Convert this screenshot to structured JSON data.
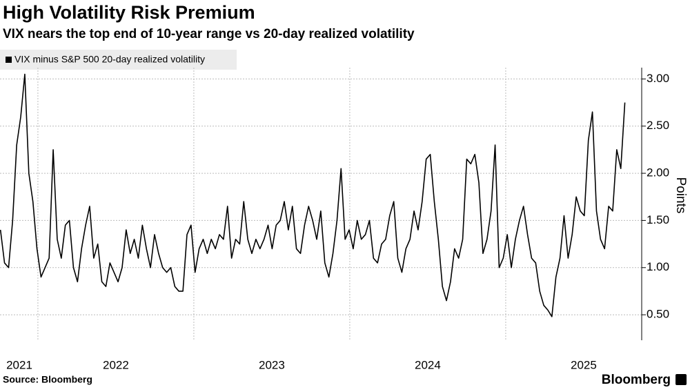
{
  "chart_data": {
    "type": "line",
    "title": "High Volatility Risk Premium",
    "subtitle": "VIX nears the top end of 10-year range vs 20-day realized volatility",
    "y_label": "Points",
    "source": "Source: Bloomberg",
    "brand": "Bloomberg",
    "legend_position": "top-left",
    "grid": true,
    "x": [
      2021.76,
      2021.786,
      2021.812,
      2021.838,
      2021.864,
      2021.89,
      2021.916,
      2021.942,
      2021.968,
      2021.994,
      2022.02,
      2022.046,
      2022.072,
      2022.098,
      2022.124,
      2022.15,
      2022.176,
      2022.202,
      2022.228,
      2022.254,
      2022.28,
      2022.306,
      2022.332,
      2022.358,
      2022.384,
      2022.41,
      2022.436,
      2022.462,
      2022.488,
      2022.514,
      2022.54,
      2022.566,
      2022.592,
      2022.618,
      2022.644,
      2022.67,
      2022.696,
      2022.722,
      2022.748,
      2022.774,
      2022.8,
      2022.826,
      2022.852,
      2022.878,
      2022.904,
      2022.93,
      2022.956,
      2022.982,
      2023.008,
      2023.034,
      2023.06,
      2023.086,
      2023.112,
      2023.138,
      2023.164,
      2023.19,
      2023.216,
      2023.242,
      2023.268,
      2023.294,
      2023.32,
      2023.346,
      2023.372,
      2023.398,
      2023.424,
      2023.45,
      2023.476,
      2023.502,
      2023.528,
      2023.554,
      2023.58,
      2023.606,
      2023.632,
      2023.658,
      2023.684,
      2023.71,
      2023.736,
      2023.762,
      2023.788,
      2023.814,
      2023.84,
      2023.866,
      2023.892,
      2023.918,
      2023.944,
      2023.97,
      2023.996,
      2024.022,
      2024.048,
      2024.074,
      2024.1,
      2024.126,
      2024.152,
      2024.178,
      2024.204,
      2024.23,
      2024.256,
      2024.282,
      2024.308,
      2024.334,
      2024.36,
      2024.386,
      2024.412,
      2024.438,
      2024.464,
      2024.49,
      2024.516,
      2024.542,
      2024.568,
      2024.594,
      2024.62,
      2024.646,
      2024.672,
      2024.698,
      2024.724,
      2024.75,
      2024.776,
      2024.802,
      2024.828,
      2024.854,
      2024.88,
      2024.906,
      2024.932,
      2024.958,
      2024.984,
      2025.01,
      2025.036,
      2025.062,
      2025.088,
      2025.114,
      2025.14,
      2025.166,
      2025.192,
      2025.218,
      2025.244,
      2025.27,
      2025.296,
      2025.322,
      2025.348,
      2025.374,
      2025.4,
      2025.426,
      2025.452,
      2025.478,
      2025.504,
      2025.53,
      2025.556,
      2025.582,
      2025.608,
      2025.634,
      2025.66,
      2025.686,
      2025.712,
      2025.738,
      2025.764
    ],
    "series": [
      {
        "name": "VIX minus S&P 500 20-day realized volatility",
        "color": "#000000",
        "values": [
          1.4,
          1.05,
          1.0,
          1.5,
          2.3,
          2.6,
          3.05,
          2.0,
          1.7,
          1.2,
          0.9,
          1.0,
          1.1,
          2.25,
          1.3,
          1.1,
          1.45,
          1.5,
          1.0,
          0.85,
          1.2,
          1.45,
          1.65,
          1.1,
          1.25,
          0.85,
          0.8,
          1.05,
          0.95,
          0.85,
          1.0,
          1.4,
          1.15,
          1.3,
          1.1,
          1.45,
          1.2,
          1.0,
          1.35,
          1.15,
          1.0,
          0.95,
          1.0,
          0.8,
          0.75,
          0.75,
          1.35,
          1.45,
          0.95,
          1.2,
          1.3,
          1.15,
          1.3,
          1.2,
          1.35,
          1.3,
          1.65,
          1.1,
          1.3,
          1.25,
          1.7,
          1.3,
          1.15,
          1.3,
          1.2,
          1.3,
          1.45,
          1.2,
          1.45,
          1.5,
          1.7,
          1.4,
          1.65,
          1.2,
          1.15,
          1.45,
          1.65,
          1.5,
          1.3,
          1.6,
          1.05,
          0.9,
          1.15,
          1.5,
          2.05,
          1.3,
          1.4,
          1.2,
          1.5,
          1.3,
          1.35,
          1.5,
          1.1,
          1.05,
          1.25,
          1.3,
          1.55,
          1.7,
          1.1,
          0.95,
          1.2,
          1.3,
          1.6,
          1.4,
          1.7,
          2.15,
          2.2,
          1.7,
          1.3,
          0.8,
          0.65,
          0.85,
          1.2,
          1.1,
          1.3,
          2.15,
          2.1,
          2.2,
          1.9,
          1.15,
          1.3,
          1.6,
          2.3,
          1.0,
          1.1,
          1.35,
          1.0,
          1.3,
          1.5,
          1.65,
          1.35,
          1.1,
          1.05,
          0.75,
          0.6,
          0.55,
          0.48,
          0.9,
          1.1,
          1.55,
          1.1,
          1.35,
          1.75,
          1.6,
          1.55,
          2.35,
          2.65,
          1.6,
          1.3,
          1.2,
          1.65,
          1.6,
          2.25,
          2.05,
          2.75
        ]
      }
    ],
    "xlim": [
      2021.757,
      2025.872
    ],
    "xticks": [
      {
        "value": 2021.5,
        "label": "2021"
      },
      {
        "value": 2022.5,
        "label": "2022"
      },
      {
        "value": 2023.5,
        "label": "2023"
      },
      {
        "value": 2024.5,
        "label": "2024"
      },
      {
        "value": 2025.5,
        "label": "2025"
      }
    ],
    "xgrid": [
      2022,
      2023,
      2024,
      2025
    ],
    "ylim": [
      0.23,
      3.12
    ],
    "yticks": [
      {
        "value": 0.5,
        "label": "0.50"
      },
      {
        "value": 1,
        "label": "1.00"
      },
      {
        "value": 1.5,
        "label": "1.50"
      },
      {
        "value": 2,
        "label": "2.00"
      },
      {
        "value": 2.5,
        "label": "2.50"
      },
      {
        "value": 3,
        "label": "3.00"
      }
    ]
  }
}
